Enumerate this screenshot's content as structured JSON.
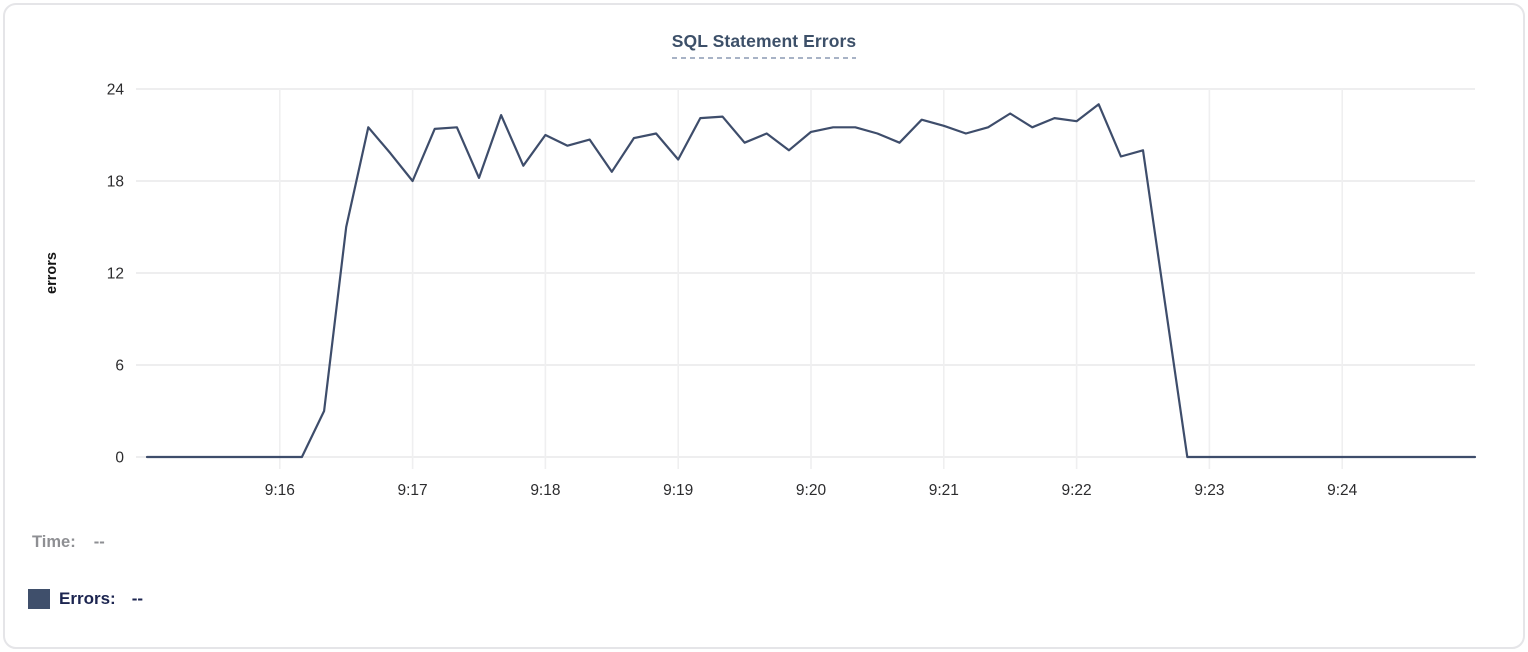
{
  "title": "SQL Statement Errors",
  "legend": {
    "time_label": "Time:",
    "time_value": "--",
    "errors_label": "Errors:",
    "errors_value": "--"
  },
  "colors": {
    "line": "#3e4d6b",
    "title_text": "#3d5069",
    "title_dashes": "#a8b3c6",
    "grid": "#e9e9ea",
    "axis_text": "#2c2c2e",
    "legend_time_text": "#8e8f93",
    "legend_errors_text": "#1c2550",
    "swatch": "#3f4f6b",
    "card_border": "#e5e5e8"
  },
  "chart_data": {
    "type": "line",
    "title": "SQL Statement Errors",
    "xlabel": "",
    "ylabel": "errors",
    "ylim": [
      0,
      24
    ],
    "y_ticks": [
      24,
      18,
      12,
      6,
      0
    ],
    "x_tick_labels": [
      "9:16",
      "9:17",
      "9:18",
      "9:19",
      "9:20",
      "9:21",
      "9:22",
      "9:23",
      "9:24"
    ],
    "x_range": [
      "9:15:00",
      "9:25:00"
    ],
    "x_interval_seconds": 10,
    "grid": true,
    "legend_position": "bottom-left",
    "series": [
      {
        "name": "Errors",
        "color": "#3e4d6b",
        "x": [
          "9:15:00",
          "9:15:10",
          "9:15:20",
          "9:15:30",
          "9:15:40",
          "9:15:50",
          "9:16:00",
          "9:16:10",
          "9:16:20",
          "9:16:30",
          "9:16:40",
          "9:16:50",
          "9:17:00",
          "9:17:10",
          "9:17:20",
          "9:17:30",
          "9:17:40",
          "9:17:50",
          "9:18:00",
          "9:18:10",
          "9:18:20",
          "9:18:30",
          "9:18:40",
          "9:18:50",
          "9:19:00",
          "9:19:10",
          "9:19:20",
          "9:19:30",
          "9:19:40",
          "9:19:50",
          "9:20:00",
          "9:20:10",
          "9:20:20",
          "9:20:30",
          "9:20:40",
          "9:20:50",
          "9:21:00",
          "9:21:10",
          "9:21:20",
          "9:21:30",
          "9:21:40",
          "9:21:50",
          "9:22:00",
          "9:22:10",
          "9:22:20",
          "9:22:30",
          "9:22:40",
          "9:22:50",
          "9:23:00",
          "9:23:10",
          "9:23:20",
          "9:23:30",
          "9:23:40",
          "9:23:50",
          "9:24:00",
          "9:24:10",
          "9:24:20",
          "9:24:30",
          "9:24:40",
          "9:24:50",
          "9:25:00"
        ],
        "values": [
          0,
          0,
          0,
          0,
          0,
          0,
          0,
          0,
          3,
          15,
          21.5,
          19.8,
          18,
          21.4,
          21.5,
          18.2,
          22.3,
          19,
          21,
          20.3,
          20.7,
          18.6,
          20.8,
          21.1,
          19.4,
          22.1,
          22.2,
          20.5,
          21.1,
          20,
          21.2,
          21.5,
          21.5,
          21.1,
          20.5,
          22,
          21.6,
          21.1,
          21.5,
          22.4,
          21.5,
          22.1,
          21.9,
          23,
          19.6,
          20,
          10,
          0,
          0,
          0,
          0,
          0,
          0,
          0,
          0,
          0,
          0,
          0,
          0,
          0,
          0
        ]
      }
    ]
  }
}
